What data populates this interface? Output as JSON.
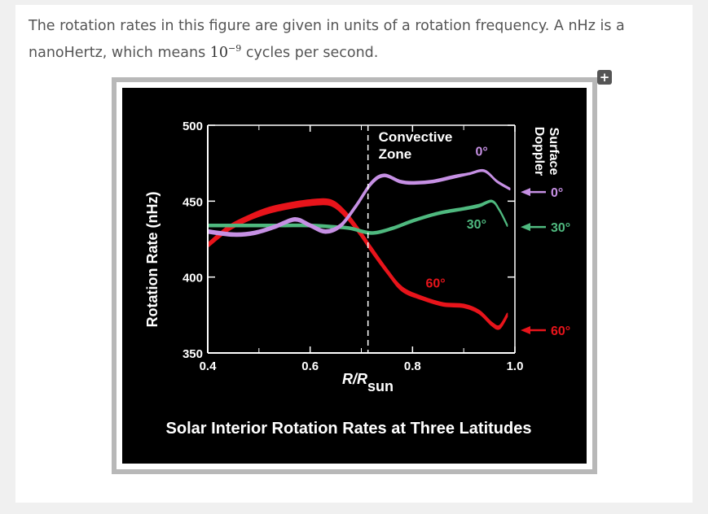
{
  "intro": {
    "text_before": "The rotation rates in this figure are given in units of a rotation frequency. A nHz is a nanoHertz, which means ",
    "math_base": "10",
    "math_exp": "−9",
    "text_after": " cycles per second."
  },
  "expand_icon": "+",
  "chart_data": {
    "type": "line",
    "title": "Solar Interior Rotation Rates at Three Latitudes",
    "xlabel_main": "R/R",
    "xlabel_sub": "sun",
    "ylabel": "Rotation Rate (nHz)",
    "xlim": [
      0.4,
      1.0
    ],
    "ylim": [
      350,
      500
    ],
    "x_ticks": [
      "0.4",
      "0.6",
      "0.8",
      "1.0"
    ],
    "y_ticks": [
      "500",
      "450",
      "400",
      "350"
    ],
    "grid": false,
    "convective_zone": {
      "x": 0.713,
      "label_line1": "Convective",
      "label_line2": "Zone"
    },
    "surface_label_line1": "Surface",
    "surface_label_line2": "Doppler",
    "series": [
      {
        "name": "60°",
        "color": "#e8141b",
        "surface_value": 365,
        "surface_label": "60°",
        "inline_label": "60°",
        "inline_label_at": [
          0.845,
          393
        ],
        "points": [
          [
            0.4,
            421
          ],
          [
            0.44,
            432
          ],
          [
            0.48,
            439
          ],
          [
            0.52,
            444
          ],
          [
            0.56,
            447
          ],
          [
            0.6,
            449
          ],
          [
            0.64,
            449
          ],
          [
            0.67,
            441
          ],
          [
            0.7,
            428
          ],
          [
            0.72,
            418
          ],
          [
            0.75,
            404
          ],
          [
            0.78,
            392
          ],
          [
            0.82,
            386
          ],
          [
            0.86,
            382
          ],
          [
            0.9,
            381
          ],
          [
            0.93,
            377
          ],
          [
            0.955,
            369
          ],
          [
            0.97,
            367
          ],
          [
            0.985,
            375
          ]
        ],
        "widths": [
          5,
          6,
          6,
          7,
          7,
          7,
          7,
          7,
          6,
          6,
          5,
          5,
          4,
          4,
          4,
          4,
          4,
          4,
          4
        ]
      },
      {
        "name": "30°",
        "color": "#4fb97f",
        "surface_value": 433,
        "surface_label": "30°",
        "inline_label": "30°",
        "inline_label_at": [
          0.925,
          432
        ],
        "points": [
          [
            0.4,
            434
          ],
          [
            0.45,
            434
          ],
          [
            0.5,
            434
          ],
          [
            0.55,
            434
          ],
          [
            0.6,
            434
          ],
          [
            0.65,
            433
          ],
          [
            0.68,
            432
          ],
          [
            0.72,
            429
          ],
          [
            0.76,
            432
          ],
          [
            0.8,
            437
          ],
          [
            0.85,
            442
          ],
          [
            0.9,
            445
          ],
          [
            0.93,
            447
          ],
          [
            0.955,
            450
          ],
          [
            0.97,
            444
          ],
          [
            0.985,
            434
          ]
        ],
        "widths": [
          3,
          3,
          3,
          3,
          3,
          3,
          3,
          3,
          3,
          3,
          3,
          3,
          3,
          2,
          2,
          2
        ]
      },
      {
        "name": "0°",
        "color": "#c690e4",
        "surface_value": 456,
        "surface_label": "0°",
        "inline_label": "0°",
        "inline_label_at": [
          0.935,
          480
        ],
        "points": [
          [
            0.4,
            430
          ],
          [
            0.45,
            428
          ],
          [
            0.49,
            429
          ],
          [
            0.53,
            433
          ],
          [
            0.57,
            438
          ],
          [
            0.6,
            434
          ],
          [
            0.63,
            430
          ],
          [
            0.66,
            434
          ],
          [
            0.69,
            447
          ],
          [
            0.72,
            462
          ],
          [
            0.745,
            467
          ],
          [
            0.775,
            463
          ],
          [
            0.8,
            462
          ],
          [
            0.84,
            463
          ],
          [
            0.88,
            466
          ],
          [
            0.91,
            468
          ],
          [
            0.94,
            470
          ],
          [
            0.965,
            463
          ],
          [
            0.99,
            458
          ]
        ],
        "widths": [
          4,
          4,
          4,
          4,
          4,
          4,
          4,
          4,
          4,
          4,
          3,
          3,
          3,
          3,
          3,
          2,
          2,
          2,
          2
        ]
      }
    ]
  }
}
